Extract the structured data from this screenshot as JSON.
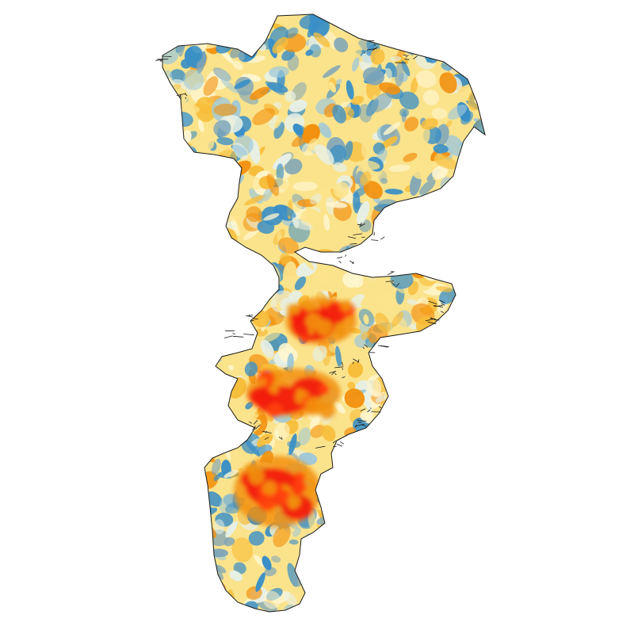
{
  "map": {
    "type": "choropleth-raster",
    "labels": [],
    "palette": {
      "strong_red": "#f21c0b",
      "red": "#ff3d12",
      "orange": "#f2910f",
      "light_orange": "#f7bd3a",
      "yellow": "#fbe38c",
      "cream": "#fff6cf",
      "pale": "#e7f0e6",
      "light_blue": "#9ec8d9",
      "blue": "#3a8fc6",
      "gray_blue": "#7fa6b8",
      "outline": "#1a1a1a",
      "background": "#ffffff"
    },
    "hotspots": [
      {
        "name": "central-upper",
        "intensity": "high"
      },
      {
        "name": "central-lower",
        "intensity": "high"
      },
      {
        "name": "southern",
        "intensity": "high"
      }
    ]
  }
}
